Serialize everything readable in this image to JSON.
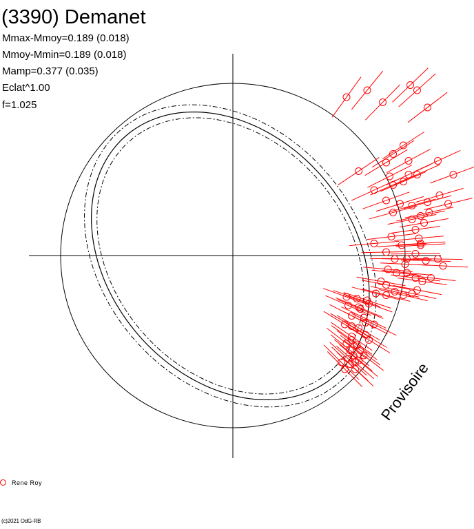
{
  "header": {
    "title": "(3390) Demanet",
    "stats": [
      "Mmax-Mmoy=0.189 (0.018)",
      "Mmoy-Mmin=0.189 (0.018)",
      "Mamp=0.377 (0.035)",
      "Eclat^1.00",
      "f=1.025"
    ]
  },
  "stamp": "Provisoire",
  "legend": {
    "label": "Rene Roy",
    "color": "#ff0000"
  },
  "copyright": "(c)2021 OdG-RB",
  "colors": {
    "curves": "#000000",
    "observations": "#ff0000"
  },
  "chart_data": {
    "type": "scatter",
    "coordinate_system": "polar (rotation phase as angle, magnitude as radius)",
    "grid": false,
    "axes": "cross through center",
    "reference_curves": [
      "unit circle",
      "mean fit",
      "fit upper bound (dashed)",
      "fit lower bound (dashed)"
    ],
    "series": [
      {
        "name": "Rene Roy",
        "color": "#ff0000",
        "points": [
          [
            0.66,
            0.92
          ],
          [
            0.78,
            0.96
          ],
          [
            0.87,
            0.89
          ],
          [
            1.03,
            0.99
          ],
          [
            1.07,
            0.96
          ],
          [
            1.13,
            0.86
          ],
          [
            0.89,
            0.54
          ],
          [
            0.99,
            0.64
          ],
          [
            1.02,
            0.55
          ],
          [
            1.19,
            0.55
          ],
          [
            1.28,
            0.47
          ],
          [
            1.07,
            0.47
          ],
          [
            0.91,
            0.46
          ],
          [
            0.73,
            0.49
          ],
          [
            0.82,
            0.38
          ],
          [
            0.93,
            0.41
          ],
          [
            0.89,
            0.32
          ],
          [
            0.97,
            0.3
          ],
          [
            1.04,
            0.29
          ],
          [
            1.13,
            0.31
          ],
          [
            1.2,
            0.35
          ],
          [
            1.25,
            0.3
          ],
          [
            1.04,
            0.21
          ],
          [
            1.09,
            0.23
          ],
          [
            1.06,
            0.15
          ],
          [
            1.08,
            0.1
          ],
          [
            1.09,
            0.06
          ],
          [
            0.92,
            0.11
          ],
          [
            0.98,
            0.06
          ],
          [
            0.82,
            0.07
          ],
          [
            0.89,
            0.02
          ],
          [
            0.94,
            -0.02
          ],
          [
            1.06,
            0.01
          ],
          [
            1.12,
            -0.03
          ],
          [
            1.19,
            -0.02
          ],
          [
            1.22,
            -0.06
          ],
          [
            0.9,
            -0.08
          ],
          [
            0.95,
            -0.1
          ],
          [
            1.01,
            -0.1
          ],
          [
            1.06,
            -0.13
          ],
          [
            1.1,
            -0.15
          ],
          [
            1.15,
            -0.13
          ],
          [
            1.07,
            -0.2
          ],
          [
            0.89,
            -0.17
          ],
          [
            0.94,
            -0.21
          ],
          [
            0.99,
            -0.23
          ],
          [
            1.04,
            -0.22
          ],
          [
            0.66,
            -0.24
          ],
          [
            0.72,
            -0.25
          ],
          [
            0.78,
            -0.26
          ],
          [
            0.83,
            -0.22
          ],
          [
            0.73,
            -0.3
          ],
          [
            0.69,
            -0.35
          ],
          [
            0.76,
            -0.36
          ],
          [
            0.73,
            -0.42
          ],
          [
            0.69,
            -0.47
          ],
          [
            0.77,
            -0.46
          ],
          [
            0.72,
            -0.52
          ],
          [
            0.79,
            -0.49
          ],
          [
            0.68,
            -0.55
          ],
          [
            0.74,
            -0.55
          ],
          [
            0.7,
            -0.58
          ],
          [
            0.67,
            -0.6
          ],
          [
            0.76,
            -0.58
          ],
          [
            0.65,
            -0.66
          ],
          [
            0.71,
            -0.62
          ],
          [
            0.66,
            -0.51
          ],
          [
            0.63,
            -0.62
          ],
          [
            0.67,
            -0.29
          ],
          [
            0.74,
            -0.31
          ],
          [
            0.77,
            -0.39
          ],
          [
            0.82,
            -0.4
          ],
          [
            0.69,
            -0.41
          ],
          [
            0.65,
            -0.4
          ],
          [
            0.79,
            -0.28
          ],
          [
            1.01,
            -0.02
          ],
          [
            1.09,
            0.07
          ],
          [
            1.11,
            0.19
          ],
          [
            1.14,
            0.25
          ],
          [
            0.99,
            0.43
          ],
          [
            1.02,
            0.47
          ],
          [
            0.93,
            0.59
          ],
          [
            0.93,
            0.25
          ],
          [
            1.0,
            -0.05
          ],
          [
            0.86,
            -0.15
          ],
          [
            0.89,
            -0.23
          ],
          [
            0.69,
            -0.49
          ],
          [
            0.73,
            -0.61
          ],
          [
            0.71,
            -0.66
          ],
          [
            0.68,
            -0.63
          ]
        ]
      }
    ]
  }
}
